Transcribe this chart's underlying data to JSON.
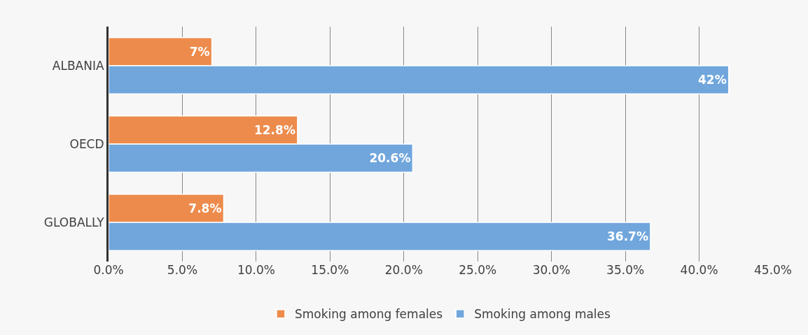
{
  "chart_data": {
    "type": "bar",
    "orientation": "horizontal",
    "categories": [
      "ALBANIA",
      "OECD",
      "GLOBALLY"
    ],
    "series": [
      {
        "name": "Smoking among females",
        "color": "#ed8b4c",
        "values": [
          7,
          12.8,
          7.8
        ],
        "value_labels": [
          "7%",
          "12.8%",
          "7.8%"
        ]
      },
      {
        "name": "Smoking among males",
        "color": "#70a6dc",
        "values": [
          42,
          20.6,
          36.7
        ],
        "value_labels": [
          "42%",
          "20.6%",
          "36.7%"
        ]
      }
    ],
    "xlim": [
      0,
      45
    ],
    "xticks": [
      {
        "value": 0,
        "label": "0.0%"
      },
      {
        "value": 5,
        "label": "5.0%"
      },
      {
        "value": 10,
        "label": "10.0%"
      },
      {
        "value": 15,
        "label": "15.0%"
      },
      {
        "value": 20,
        "label": "20.0%"
      },
      {
        "value": 25,
        "label": "25.0%"
      },
      {
        "value": 30,
        "label": "30.0%"
      },
      {
        "value": 35,
        "label": "35.0%"
      },
      {
        "value": 40,
        "label": "40.0%"
      },
      {
        "value": 45,
        "label": "45.0%"
      }
    ],
    "grid": "x",
    "legend": "bottom"
  }
}
